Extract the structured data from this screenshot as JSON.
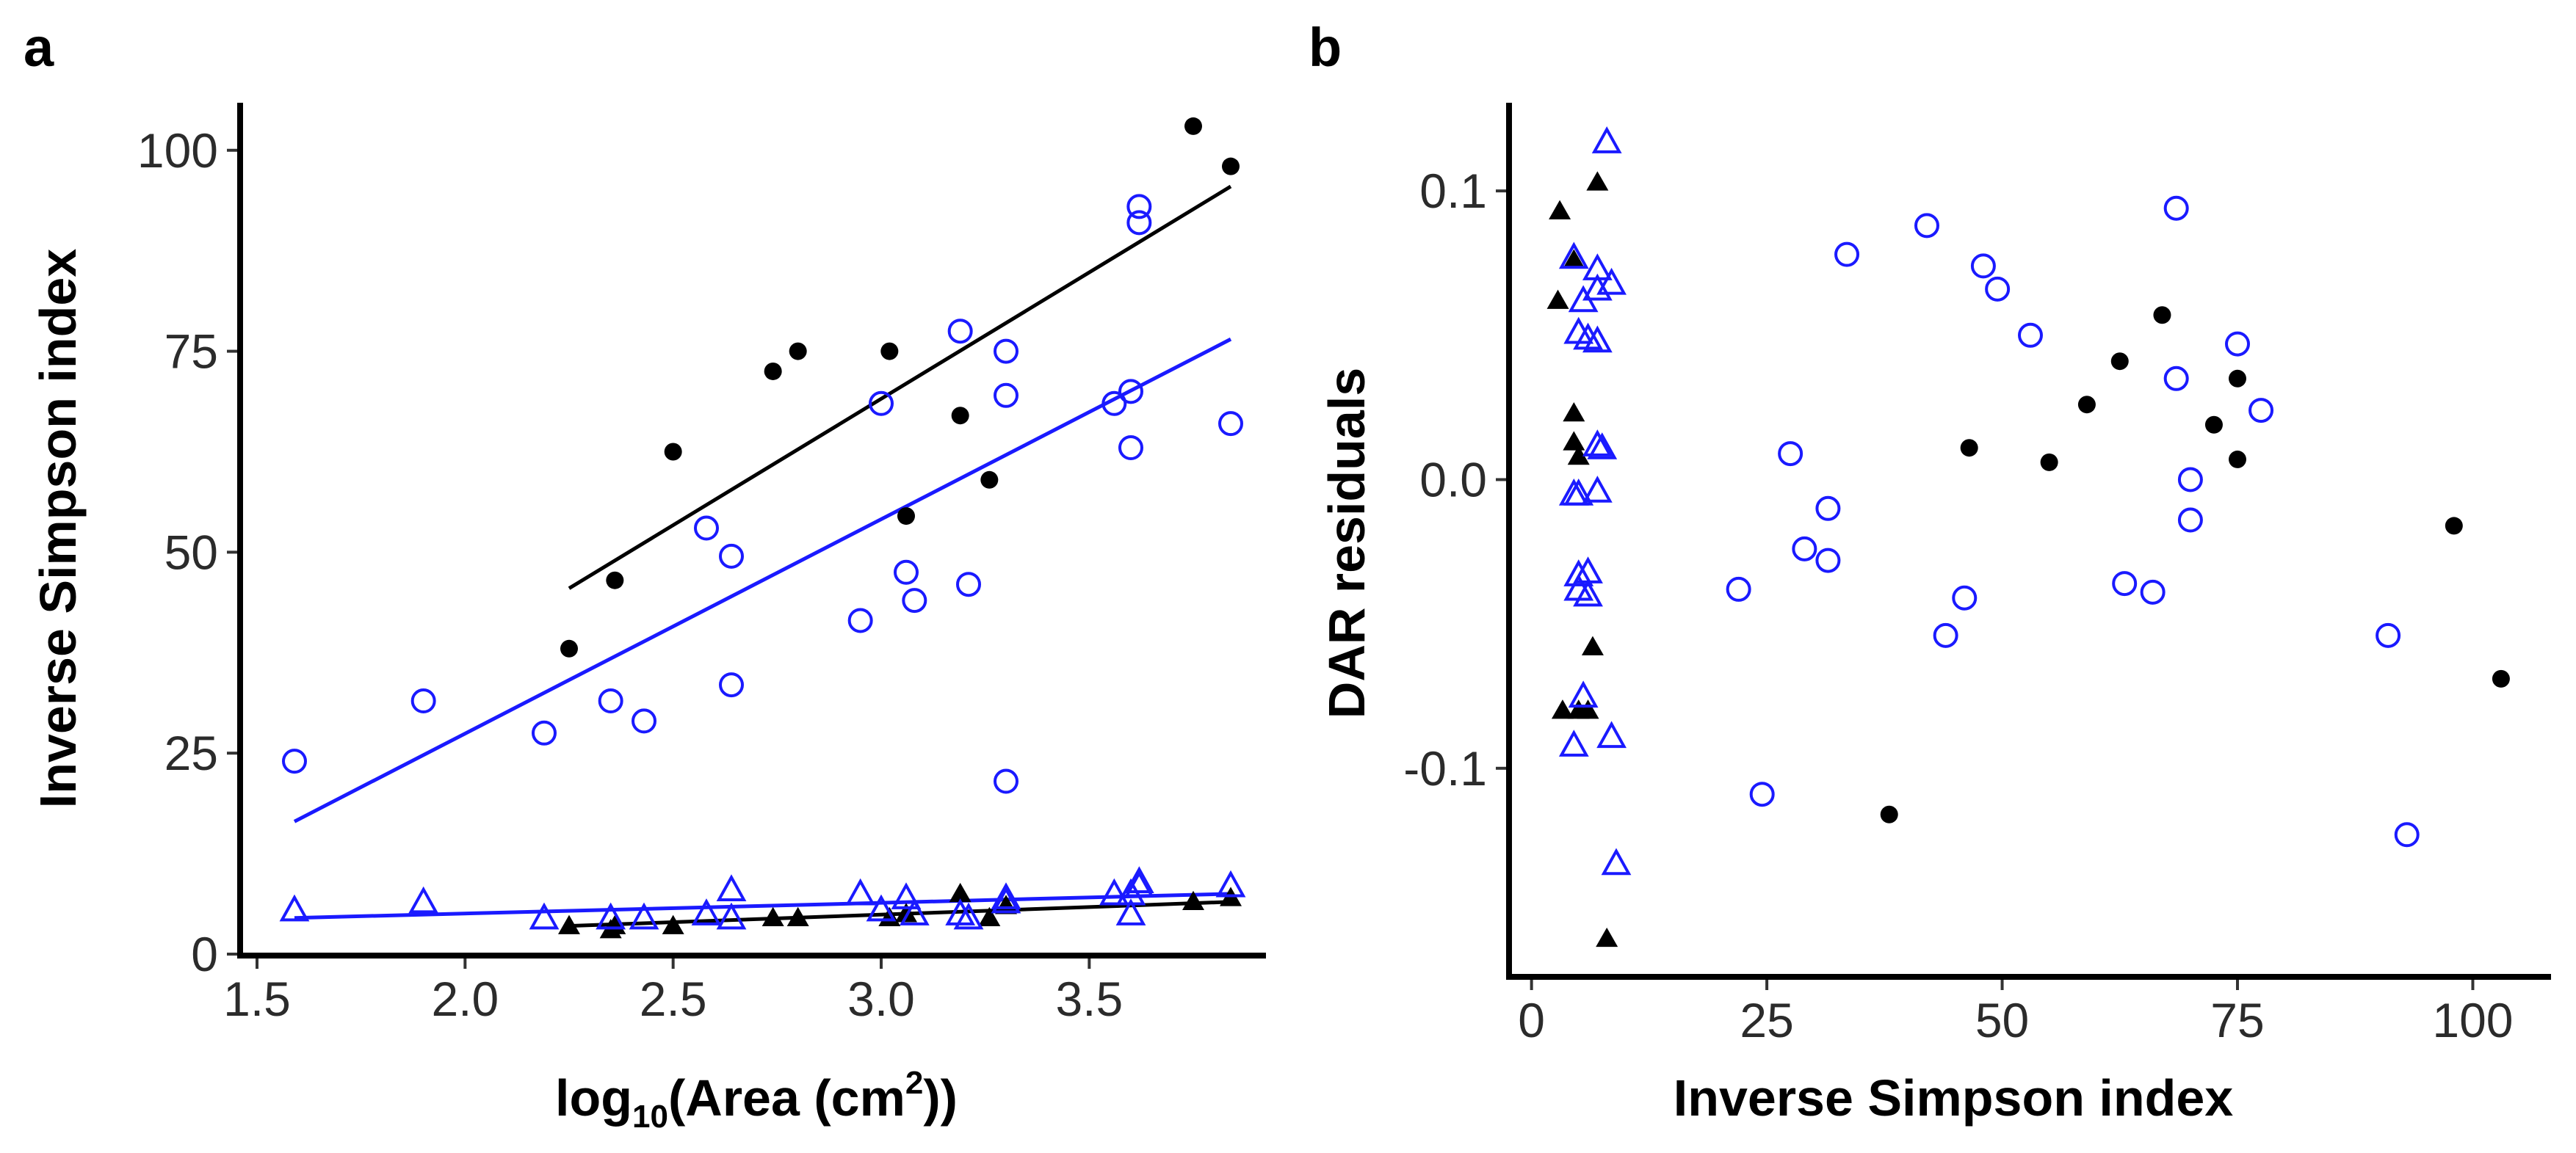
{
  "colors": {
    "black_series": "#000000",
    "blue_series": "#1a1aff",
    "axis": "#000000"
  },
  "chart_data": [
    {
      "panel_label": "a",
      "type": "scatter",
      "xlabel_main": "log",
      "xlabel_sub": "10",
      "xlabel_mid": "(Area (cm",
      "xlabel_sup": "2",
      "xlabel_end": "))",
      "ylabel": "Inverse Simpson index",
      "xlim": [
        1.5,
        3.9
      ],
      "ylim": [
        0,
        105
      ],
      "xticks": [
        1.5,
        2.0,
        2.5,
        3.0,
        3.5
      ],
      "xtick_labels": [
        "1.5",
        "2.0",
        "2.5",
        "3.0",
        "3.5"
      ],
      "yticks": [
        0,
        25,
        50,
        75,
        100
      ],
      "ytick_labels": [
        "0",
        "25",
        "50",
        "75",
        "100"
      ],
      "series": [
        {
          "name": "black circles",
          "marker": "filled-circle",
          "color": "#000000",
          "points": [
            [
              2.25,
              38
            ],
            [
              2.36,
              46.5
            ],
            [
              2.5,
              62.5
            ],
            [
              2.74,
              72.5
            ],
            [
              2.8,
              75
            ],
            [
              3.02,
              75
            ],
            [
              3.06,
              54.5
            ],
            [
              3.19,
              67
            ],
            [
              3.26,
              59
            ],
            [
              3.75,
              103
            ],
            [
              3.84,
              98
            ]
          ]
        },
        {
          "name": "blue circles",
          "marker": "open-circle",
          "color": "#1a1aff",
          "points": [
            [
              1.59,
              24
            ],
            [
              1.9,
              31.5
            ],
            [
              2.19,
              27.5
            ],
            [
              2.35,
              31.5
            ],
            [
              2.43,
              29
            ],
            [
              2.58,
              53
            ],
            [
              2.64,
              49.5
            ],
            [
              2.64,
              33.5
            ],
            [
              2.95,
              41.5
            ],
            [
              3.0,
              68.5
            ],
            [
              3.06,
              47.5
            ],
            [
              3.08,
              44
            ],
            [
              3.19,
              77.5
            ],
            [
              3.21,
              46
            ],
            [
              3.3,
              69.5
            ],
            [
              3.3,
              75
            ],
            [
              3.3,
              21.5
            ],
            [
              3.56,
              68.5
            ],
            [
              3.6,
              70
            ],
            [
              3.6,
              63
            ],
            [
              3.62,
              91
            ],
            [
              3.62,
              93
            ],
            [
              3.84,
              66
            ]
          ]
        },
        {
          "name": "black triangles",
          "marker": "filled-triangle",
          "color": "#000000",
          "points": [
            [
              2.25,
              3.5
            ],
            [
              2.35,
              3
            ],
            [
              2.36,
              3.5
            ],
            [
              2.5,
              3.5
            ],
            [
              2.74,
              4.5
            ],
            [
              2.8,
              4.5
            ],
            [
              3.02,
              4.5
            ],
            [
              3.06,
              5
            ],
            [
              3.19,
              7.5
            ],
            [
              3.26,
              4.5
            ],
            [
              3.3,
              6
            ],
            [
              3.75,
              6.5
            ],
            [
              3.84,
              7
            ]
          ]
        },
        {
          "name": "blue triangles",
          "marker": "open-triangle",
          "color": "#1a1aff",
          "points": [
            [
              1.59,
              5.5
            ],
            [
              1.9,
              6.5
            ],
            [
              2.19,
              4.5
            ],
            [
              2.35,
              4.5
            ],
            [
              2.43,
              4.5
            ],
            [
              2.58,
              5
            ],
            [
              2.64,
              4.5
            ],
            [
              2.64,
              8
            ],
            [
              2.95,
              7.5
            ],
            [
              3.0,
              5.5
            ],
            [
              3.06,
              7
            ],
            [
              3.08,
              5
            ],
            [
              3.19,
              5
            ],
            [
              3.21,
              4.5
            ],
            [
              3.3,
              7
            ],
            [
              3.3,
              6.5
            ],
            [
              3.56,
              7.5
            ],
            [
              3.6,
              7.5
            ],
            [
              3.6,
              5
            ],
            [
              3.62,
              9
            ],
            [
              3.62,
              8.5
            ],
            [
              3.84,
              8.5
            ]
          ]
        }
      ],
      "fit_lines": [
        {
          "color": "#000000",
          "x": [
            2.25,
            3.84
          ],
          "y": [
            45.5,
            95.5
          ]
        },
        {
          "color": "#1a1aff",
          "x": [
            1.59,
            3.84
          ],
          "y": [
            16.5,
            76.5
          ]
        },
        {
          "color": "#000000",
          "x": [
            2.25,
            3.84
          ],
          "y": [
            3.5,
            6.5
          ]
        },
        {
          "color": "#1a1aff",
          "x": [
            1.59,
            3.84
          ],
          "y": [
            4.5,
            7.5
          ]
        }
      ]
    },
    {
      "panel_label": "b",
      "type": "scatter",
      "xlabel": "Inverse Simpson index",
      "ylabel": "DAR residuals",
      "xlim": [
        -2,
        108
      ],
      "ylim": [
        -0.172,
        0.128
      ],
      "xticks": [
        0,
        25,
        50,
        75,
        100
      ],
      "xtick_labels": [
        "0",
        "25",
        "50",
        "75",
        "100"
      ],
      "yticks": [
        -0.1,
        0.0,
        0.1
      ],
      "ytick_labels": [
        "-0.1",
        "0.0",
        "0.1"
      ],
      "series": [
        {
          "name": "black circles",
          "marker": "filled-circle",
          "color": "#000000",
          "points": [
            [
              38,
              -0.116
            ],
            [
              46.5,
              0.011
            ],
            [
              55,
              0.006
            ],
            [
              59,
              0.026
            ],
            [
              62.5,
              0.041
            ],
            [
              67,
              0.057
            ],
            [
              72.5,
              0.019
            ],
            [
              75,
              0.035
            ],
            [
              75,
              0.007
            ],
            [
              98,
              -0.016
            ],
            [
              103,
              -0.069
            ]
          ]
        },
        {
          "name": "blue circles",
          "marker": "open-circle",
          "color": "#1a1aff",
          "points": [
            [
              22,
              -0.038
            ],
            [
              24.5,
              -0.109
            ],
            [
              27.5,
              0.009
            ],
            [
              29,
              -0.024
            ],
            [
              31.5,
              -0.028
            ],
            [
              31.5,
              -0.01
            ],
            [
              33.5,
              0.078
            ],
            [
              42,
              0.088
            ],
            [
              44,
              -0.054
            ],
            [
              46,
              -0.041
            ],
            [
              48,
              0.074
            ],
            [
              49.5,
              0.066
            ],
            [
              53,
              0.05
            ],
            [
              63,
              -0.036
            ],
            [
              66,
              -0.039
            ],
            [
              68.5,
              0.035
            ],
            [
              68.5,
              0.094
            ],
            [
              70,
              0.0
            ],
            [
              70,
              -0.014
            ],
            [
              75,
              0.047
            ],
            [
              77.5,
              0.024
            ],
            [
              91,
              -0.054
            ],
            [
              93,
              -0.123
            ]
          ]
        },
        {
          "name": "black triangles",
          "marker": "filled-triangle",
          "color": "#000000",
          "points": [
            [
              2.8,
              0.062
            ],
            [
              3,
              0.093
            ],
            [
              3.3,
              -0.08
            ],
            [
              4.5,
              0.076
            ],
            [
              4.5,
              0.023
            ],
            [
              4.5,
              0.013
            ],
            [
              5,
              0.008
            ],
            [
              5,
              -0.08
            ],
            [
              6,
              -0.08
            ],
            [
              6.5,
              -0.058
            ],
            [
              7,
              0.103
            ],
            [
              8,
              -0.159
            ]
          ]
        },
        {
          "name": "blue triangles",
          "marker": "open-triangle",
          "color": "#1a1aff",
          "points": [
            [
              4.5,
              0.077
            ],
            [
              5,
              0.051
            ],
            [
              4.5,
              -0.005
            ],
            [
              5,
              -0.005
            ],
            [
              4.5,
              -0.092
            ],
            [
              5,
              -0.033
            ],
            [
              5,
              -0.038
            ],
            [
              5.5,
              -0.075
            ],
            [
              5.5,
              0.062
            ],
            [
              6,
              -0.04
            ],
            [
              6,
              0.049
            ],
            [
              6,
              -0.032
            ],
            [
              7,
              0.073
            ],
            [
              7,
              0.066
            ],
            [
              7,
              0.012
            ],
            [
              7,
              0.048
            ],
            [
              7,
              -0.004
            ],
            [
              7.5,
              0.011
            ],
            [
              8,
              0.117
            ],
            [
              8.5,
              -0.089
            ],
            [
              8.5,
              0.068
            ],
            [
              9,
              -0.133
            ]
          ]
        }
      ]
    }
  ]
}
